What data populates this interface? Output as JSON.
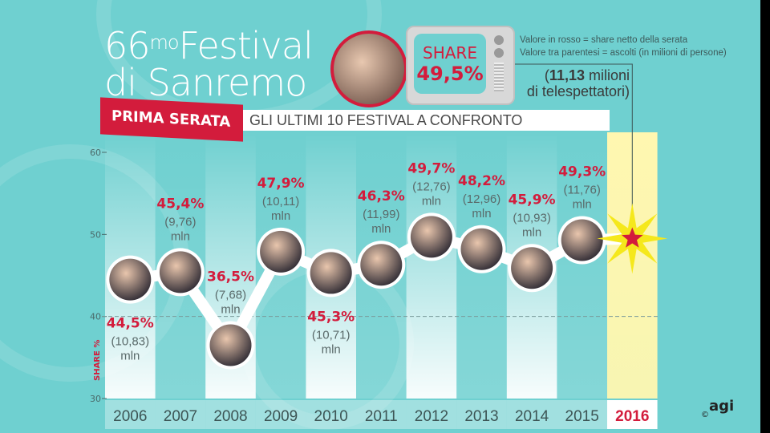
{
  "header": {
    "title_line1_prefix": "66",
    "title_sup": "mo",
    "title_line1_suffix": "Festival",
    "title_line2": "di Sanremo",
    "banner_red": "PRIMA SERATA",
    "banner_white": "GLI ULTIMI 10 FESTIVAL A CONFRONTO"
  },
  "tv": {
    "label": "SHARE",
    "value": "49,5%"
  },
  "legend": {
    "line1": "Valore in rosso = share netto della serata",
    "line2": "Valore tra parentesi = ascolti (in milioni di persone)"
  },
  "viewers": {
    "open": "(",
    "value": "11,13",
    "unit": " milioni",
    "line2": "di telespettatori)"
  },
  "logo": {
    "text": "agi",
    "copyright": "©"
  },
  "colors": {
    "accent": "#d31c3c",
    "background": "#6fd0d0",
    "highlight": "#fff7b0"
  },
  "chart_data": {
    "type": "line",
    "ylabel": "SHARE %",
    "ylim": [
      30,
      60
    ],
    "yticks": [
      "30",
      "40",
      "50",
      "60"
    ],
    "grid_dashed_at": 40,
    "categories": [
      "2006",
      "2007",
      "2008",
      "2009",
      "2010",
      "2011",
      "2012",
      "2013",
      "2014",
      "2015",
      "2016"
    ],
    "share": [
      44.5,
      45.4,
      36.5,
      47.9,
      45.3,
      46.3,
      49.7,
      48.2,
      45.9,
      49.3,
      49.5
    ],
    "share_labels": [
      "44,5%",
      "45,4%",
      "36,5%",
      "47,9%",
      "45,3%",
      "46,3%",
      "49,7%",
      "48,2%",
      "45,9%",
      "49,3%",
      ""
    ],
    "audience_labels": [
      "10,83",
      "9,76",
      "7,68",
      "10,11",
      "10,71",
      "11,99",
      "12,76",
      "12,96",
      "10,93",
      "11,76",
      ""
    ],
    "audience_unit": "mln",
    "highlight_category": "2016"
  }
}
